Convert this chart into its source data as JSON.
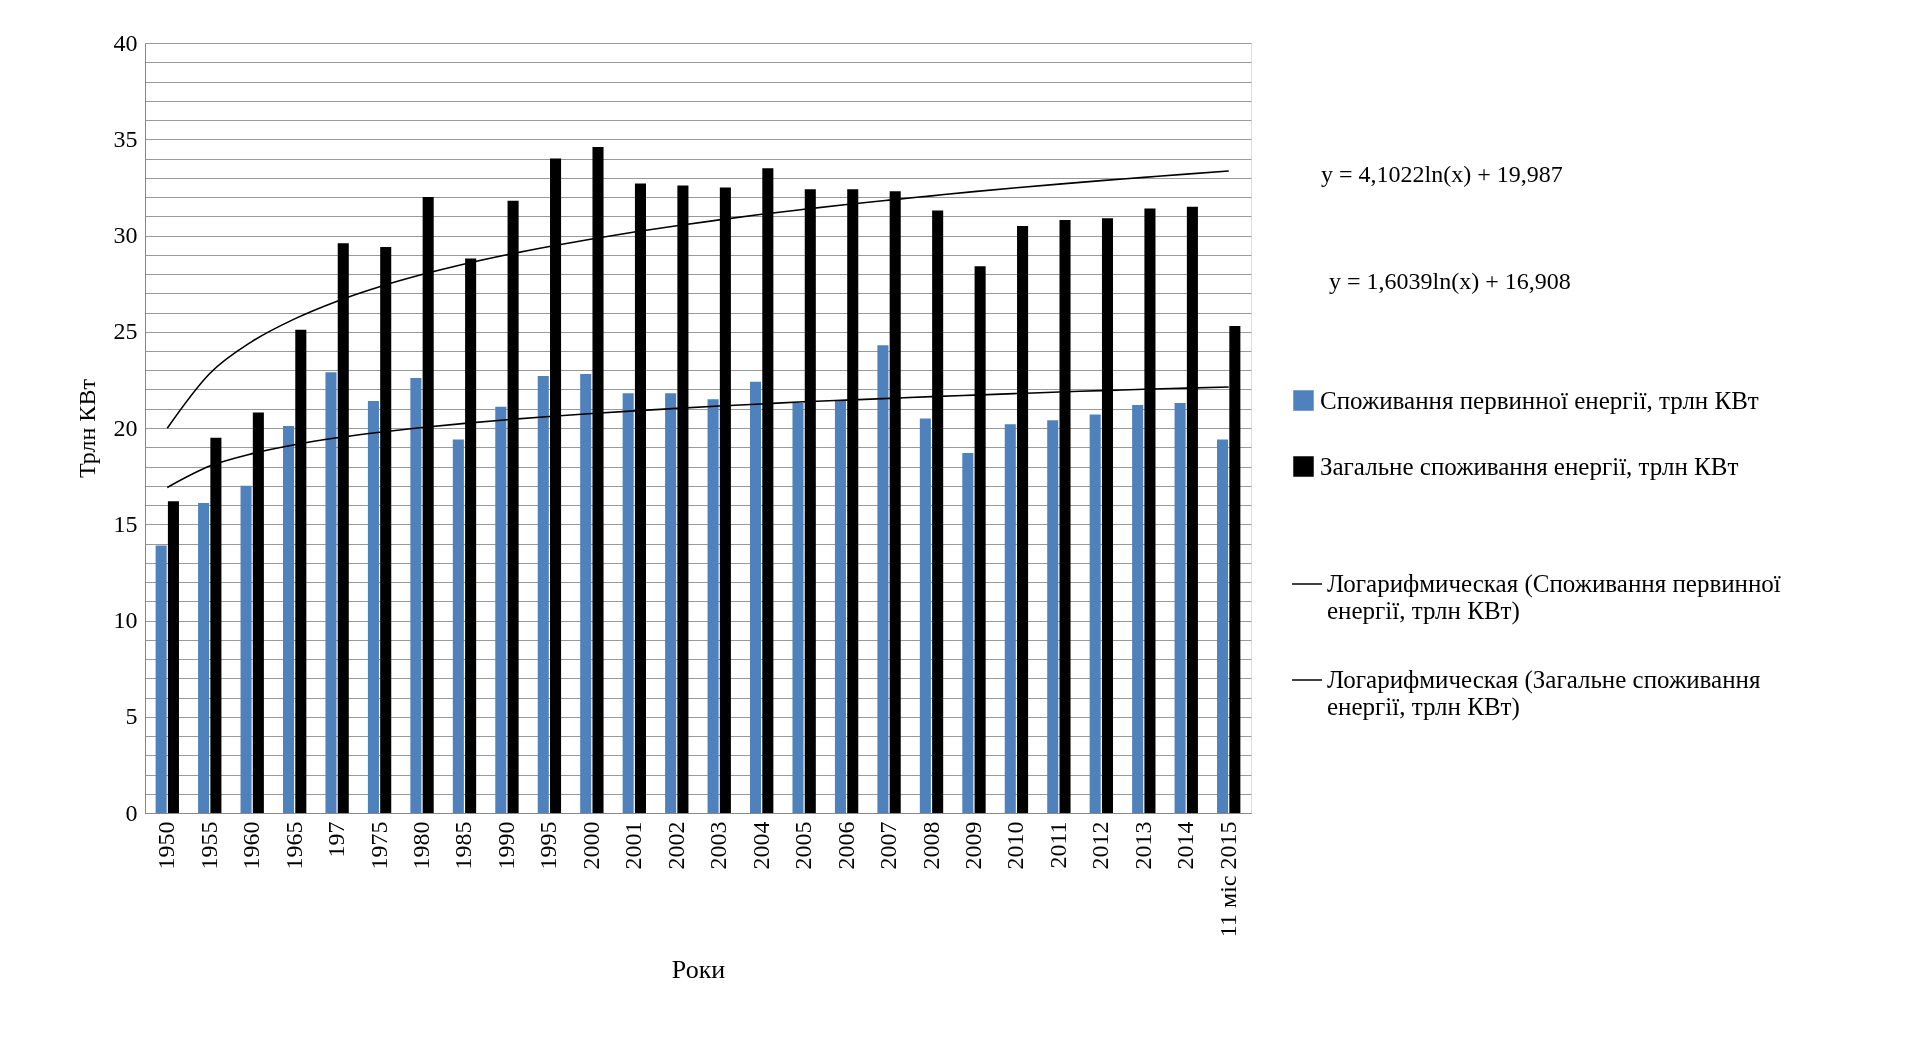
{
  "chart_data": {
    "type": "bar",
    "xlabel": "Роки",
    "ylabel": "Трлн КВт",
    "categories": [
      "1950",
      "1955",
      "1960",
      "1965",
      "197",
      "1975",
      "1980",
      "1985",
      "1990",
      "1995",
      "2000",
      "2001",
      "2002",
      "2003",
      "2004",
      "2005",
      "2006",
      "2007",
      "2008",
      "2009",
      "2010",
      "2011",
      "2012",
      "2013",
      "2014",
      "11 міс 2015"
    ],
    "series": [
      {
        "name": "Споживання первинної енергії, трлн КВт",
        "color": "#4f81bd",
        "values": [
          13.9,
          16.1,
          17.0,
          20.1,
          22.9,
          21.4,
          22.6,
          19.4,
          21.1,
          22.7,
          22.8,
          21.8,
          21.8,
          21.5,
          22.4,
          21.3,
          21.4,
          24.3,
          20.5,
          18.7,
          20.2,
          20.4,
          20.7,
          21.2,
          21.3,
          19.4
        ]
      },
      {
        "name": "Загальне споживання енергії, трлн КВт",
        "color": "#000000",
        "values": [
          16.2,
          19.5,
          20.8,
          25.1,
          29.6,
          29.4,
          32.0,
          28.8,
          31.8,
          34.0,
          34.6,
          32.7,
          32.6,
          32.5,
          33.5,
          32.4,
          32.4,
          32.3,
          31.3,
          28.4,
          30.5,
          30.8,
          30.9,
          31.4,
          31.5,
          25.3
        ]
      },
      {
        "name": "Логарифмическая (Споживання первинної енергії, трлн КВт)",
        "type": "line",
        "color": "#000000",
        "values": [
          16.91,
          18.02,
          18.67,
          19.13,
          19.49,
          19.78,
          20.03,
          20.24,
          20.43,
          20.6,
          20.75,
          20.89,
          21.02,
          21.14,
          21.25,
          21.36,
          21.45,
          21.54,
          21.63,
          21.71,
          21.79,
          21.87,
          21.94,
          22.01,
          22.07,
          22.13
        ]
      },
      {
        "name": "Логарифмическая (Загальне споживання енергії, трлн КВт)",
        "type": "line",
        "color": "#000000",
        "values": [
          19.99,
          22.83,
          24.5,
          25.67,
          26.59,
          27.34,
          27.97,
          28.52,
          29.0,
          29.43,
          29.82,
          30.18,
          30.51,
          30.81,
          31.1,
          31.36,
          31.61,
          31.84,
          32.06,
          32.28,
          32.48,
          32.67,
          32.85,
          33.02,
          33.19,
          33.35
        ]
      }
    ],
    "ylim": [
      0,
      40
    ],
    "yticks": [
      0,
      {
        "value": 1,
        "label": null
      },
      {
        "value": 2,
        "label": null
      },
      {
        "value": 3,
        "label": null
      },
      {
        "value": 4,
        "label": null
      },
      5,
      {
        "value": 6,
        "label": null
      },
      {
        "value": 7,
        "label": null
      },
      {
        "value": 8,
        "label": null
      },
      {
        "value": 9,
        "label": null
      },
      10,
      {
        "value": 11,
        "label": null
      },
      {
        "value": 12,
        "label": null
      },
      {
        "value": 13,
        "label": null
      },
      {
        "value": 14,
        "label": null
      },
      15,
      {
        "value": 16,
        "label": null
      },
      {
        "value": 17,
        "label": null
      },
      {
        "value": 18,
        "label": null
      },
      {
        "value": 19,
        "label": null
      },
      20,
      {
        "value": 21,
        "label": null
      },
      {
        "value": 22,
        "label": null
      },
      {
        "value": 23,
        "label": null
      },
      {
        "value": 24,
        "label": null
      },
      25,
      {
        "value": 26,
        "label": null
      },
      {
        "value": 27,
        "label": null
      },
      {
        "value": 28,
        "label": null
      },
      {
        "value": 29,
        "label": null
      },
      30,
      {
        "value": 31,
        "label": null
      },
      {
        "value": 32,
        "label": null
      },
      {
        "value": 33,
        "label": null
      },
      {
        "value": 34,
        "label": null
      },
      35,
      {
        "value": 36,
        "label": null
      },
      {
        "value": 37,
        "label": null
      },
      {
        "value": 38,
        "label": null
      },
      {
        "value": 39,
        "label": null
      },
      40
    ],
    "grid": "y",
    "legend": "right",
    "line_style": "solid",
    "marker": "none",
    "annotations": [
      "y = 4,1022ln(x) + 19,987",
      "y = 1,6039ln(x) + 16,908"
    ]
  }
}
